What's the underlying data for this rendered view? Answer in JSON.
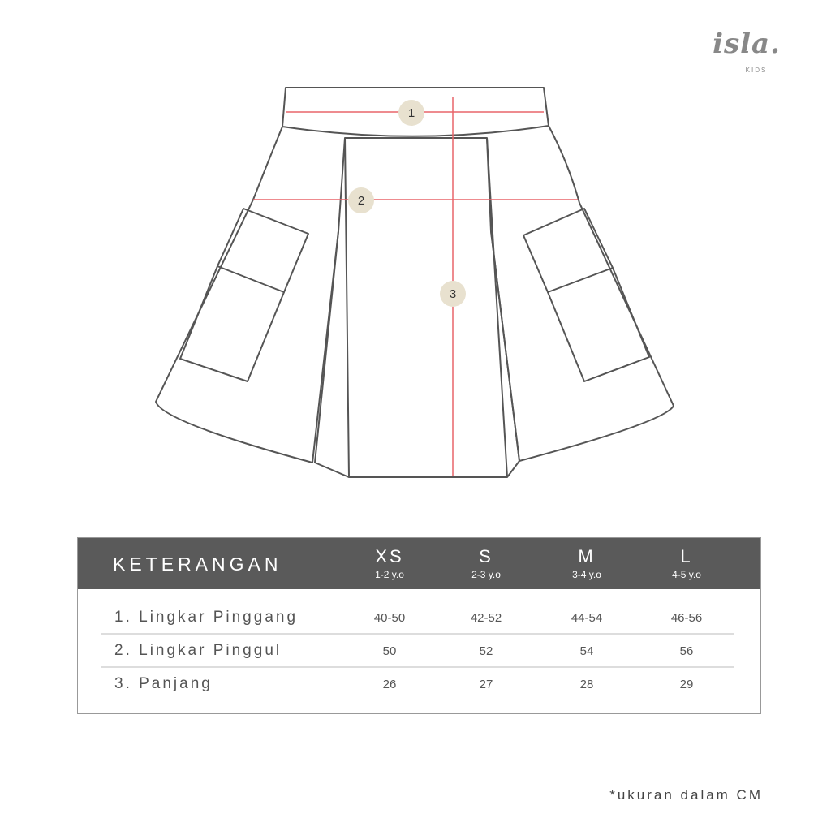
{
  "logo": {
    "brand": "isla.",
    "sub": "KIDS"
  },
  "diagram": {
    "markers": [
      "1",
      "2",
      "3"
    ],
    "colors": {
      "outline": "#555555",
      "measure_line": "#e8656a",
      "marker_fill": "#e8e1cf"
    }
  },
  "table": {
    "header_label": "KETERANGAN",
    "sizes": [
      {
        "size": "XS",
        "age": "1-2 y.o"
      },
      {
        "size": "S",
        "age": "2-3 y.o"
      },
      {
        "size": "M",
        "age": "3-4 y.o"
      },
      {
        "size": "L",
        "age": "4-5 y.o"
      }
    ],
    "rows": [
      {
        "label": "1. Lingkar Pinggang",
        "values": [
          "40-50",
          "42-52",
          "44-54",
          "46-56"
        ]
      },
      {
        "label": "2. Lingkar Pinggul",
        "values": [
          "50",
          "52",
          "54",
          "56"
        ]
      },
      {
        "label": "3. Panjang",
        "values": [
          "26",
          "27",
          "28",
          "29"
        ]
      }
    ],
    "header_color": "#5a5a5a"
  },
  "note": "*ukuran dalam CM"
}
